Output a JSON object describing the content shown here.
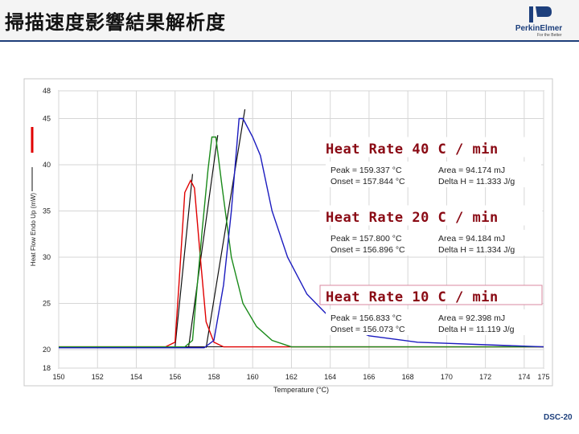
{
  "title": "掃描速度影響結果解析度",
  "logo": {
    "name": "PerkinElmer",
    "tagline": "For the Better",
    "icon": "perkinelmer-logo-icon"
  },
  "slide_number": "DSC-20",
  "colors": {
    "header_bg": "#f4f4f4",
    "rule": "#1f3f7a",
    "series_10": "#e00000",
    "series_20": "#1a8a1a",
    "series_40": "#1b1bbf",
    "baseline": "#111111",
    "annotation_title": "#8a0a14",
    "box_border": "#d98aa0"
  },
  "chart_data": {
    "type": "line",
    "xlabel": "Temperature (°C)",
    "ylabel": "Heat Flow Endo Up (mW)",
    "xlim": [
      150,
      175
    ],
    "ylim": [
      18,
      48
    ],
    "x_ticks": [
      "150",
      "152",
      "154",
      "156",
      "158",
      "160",
      "162",
      "164",
      "166",
      "168",
      "170",
      "172",
      "174",
      "175"
    ],
    "y_ticks": [
      "18",
      "20",
      "25",
      "30",
      "35",
      "40",
      "45",
      "48"
    ],
    "grid": true,
    "series": [
      {
        "key": "r10",
        "color": "#e00000",
        "points": [
          [
            150,
            20.3
          ],
          [
            155.5,
            20.3
          ],
          [
            156.0,
            20.8
          ],
          [
            156.2,
            27.0
          ],
          [
            156.5,
            37.0
          ],
          [
            156.8,
            38.3
          ],
          [
            157.0,
            37.5
          ],
          [
            157.3,
            30.0
          ],
          [
            157.6,
            23.0
          ],
          [
            158.0,
            20.8
          ],
          [
            158.5,
            20.3
          ],
          [
            175,
            20.3
          ]
        ]
      },
      {
        "key": "g20",
        "color": "#1a8a1a",
        "points": [
          [
            150,
            20.3
          ],
          [
            156.5,
            20.3
          ],
          [
            156.9,
            21.0
          ],
          [
            157.1,
            26.0
          ],
          [
            157.4,
            33.0
          ],
          [
            157.7,
            39.5
          ],
          [
            157.9,
            43.0
          ],
          [
            158.1,
            43.0
          ],
          [
            158.4,
            38.0
          ],
          [
            158.9,
            30.0
          ],
          [
            159.5,
            25.0
          ],
          [
            160.2,
            22.5
          ],
          [
            161.0,
            21.0
          ],
          [
            162,
            20.3
          ],
          [
            175,
            20.3
          ]
        ]
      },
      {
        "key": "b40",
        "color": "#1b1bbf",
        "points": [
          [
            150,
            20.2
          ],
          [
            157.5,
            20.2
          ],
          [
            158.0,
            21.0
          ],
          [
            158.5,
            27.0
          ],
          [
            158.9,
            35.0
          ],
          [
            159.3,
            45.0
          ],
          [
            159.5,
            45.0
          ],
          [
            160.0,
            43.0
          ],
          [
            160.4,
            41.0
          ],
          [
            161.0,
            35.0
          ],
          [
            161.8,
            30.0
          ],
          [
            162.8,
            26.0
          ],
          [
            164.2,
            23.0
          ],
          [
            166.0,
            21.5
          ],
          [
            168.5,
            20.8
          ],
          [
            175,
            20.3
          ]
        ]
      }
    ],
    "annotations": [
      {
        "title": "Heat Rate 40 C / min",
        "peak": "Peak = 159.337 °C",
        "onset": "Onset = 157.844 °C",
        "area": "Area = 94.174 mJ",
        "delta": "Delta H = 11.333 J/g"
      },
      {
        "title": "Heat Rate 20 C / min",
        "peak": "Peak = 157.800 °C",
        "onset": "Onset = 156.896 °C",
        "area": "Area = 94.184 mJ",
        "delta": "Delta H = 11.334 J/g"
      },
      {
        "title": "Heat Rate 10 C / min",
        "peak": "Peak = 156.833 °C",
        "onset": "Onset = 156.073 °C",
        "area": "Area = 92.398 mJ",
        "delta": "Delta H = 11.119 J/g"
      }
    ]
  }
}
